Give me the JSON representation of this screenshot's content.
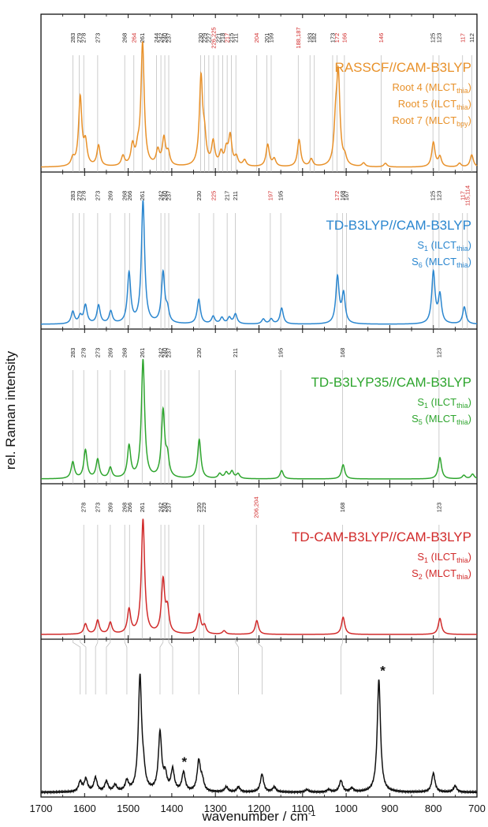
{
  "chart_data": {
    "type": "line",
    "xlabel": "wavenumber / cm",
    "xlabel_sup": "-1",
    "ylabel": "rel. Raman intensity",
    "x_reversed": true,
    "xlim": [
      700,
      1700
    ],
    "xticks": [
      "1700",
      "1600",
      "1500",
      "1400",
      "1300",
      "1200",
      "1100",
      "1000",
      "900",
      "800",
      "700"
    ],
    "xtick_values": [
      1700,
      1600,
      1500,
      1400,
      1300,
      1200,
      1100,
      1000,
      900,
      800,
      700
    ],
    "panels": [
      {
        "id": "rasscf",
        "color": "#e8912a",
        "title": "RASSCF//CAM-B3LYP",
        "legend": [
          {
            "main": "Root 4 (MLCT",
            "sub": "thia",
            "end": ")"
          },
          {
            "main": "Root 5 (ILCT",
            "sub": "thia",
            "end": ")"
          },
          {
            "main": "Root 7 (MLCT",
            "sub": "bpy",
            "end": ")"
          }
        ],
        "peaks": [
          {
            "x": 1627,
            "h": 0.06
          },
          {
            "x": 1610,
            "h": 0.56
          },
          {
            "x": 1598,
            "h": 0.18
          },
          {
            "x": 1568,
            "h": 0.17
          },
          {
            "x": 1512,
            "h": 0.08
          },
          {
            "x": 1490,
            "h": 0.16
          },
          {
            "x": 1478,
            "h": 0.1
          },
          {
            "x": 1467,
            "h": 1.0
          },
          {
            "x": 1432,
            "h": 0.12
          },
          {
            "x": 1418,
            "h": 0.22
          },
          {
            "x": 1408,
            "h": 0.1
          },
          {
            "x": 1333,
            "h": 0.71
          },
          {
            "x": 1325,
            "h": 0.2
          },
          {
            "x": 1305,
            "h": 0.19
          },
          {
            "x": 1287,
            "h": 0.1
          },
          {
            "x": 1275,
            "h": 0.12
          },
          {
            "x": 1266,
            "h": 0.24
          },
          {
            "x": 1252,
            "h": 0.07
          },
          {
            "x": 1233,
            "h": 0.05
          },
          {
            "x": 1180,
            "h": 0.18
          },
          {
            "x": 1165,
            "h": 0.06
          },
          {
            "x": 1108,
            "h": 0.22
          },
          {
            "x": 1080,
            "h": 0.06
          },
          {
            "x": 1024,
            "h": 0.31
          },
          {
            "x": 1018,
            "h": 0.7
          },
          {
            "x": 1003,
            "h": 0.06
          },
          {
            "x": 960,
            "h": 0.03
          },
          {
            "x": 910,
            "h": 0.03
          },
          {
            "x": 800,
            "h": 0.2
          },
          {
            "x": 785,
            "h": 0.08
          },
          {
            "x": 740,
            "h": 0.03
          },
          {
            "x": 712,
            "h": 0.1
          }
        ],
        "labels": [
          {
            "x": 1627,
            "t": "283",
            "c": "#222"
          },
          {
            "x": 1612,
            "t": "279",
            "c": "#222"
          },
          {
            "x": 1602,
            "t": "278",
            "c": "#222"
          },
          {
            "x": 1570,
            "t": "273",
            "c": "#222"
          },
          {
            "x": 1508,
            "t": "268",
            "c": "#222"
          },
          {
            "x": 1487,
            "t": "264",
            "c": "#d12a2a"
          },
          {
            "x": 1468,
            "t": "261",
            "c": "#222"
          },
          {
            "x": 1435,
            "t": "244",
            "c": "#222"
          },
          {
            "x": 1425,
            "t": "242",
            "c": "#222"
          },
          {
            "x": 1416,
            "t": "240",
            "c": "#222"
          },
          {
            "x": 1407,
            "t": "237",
            "c": "#222"
          },
          {
            "x": 1334,
            "t": "230",
            "c": "#222"
          },
          {
            "x": 1325,
            "t": "229",
            "c": "#222"
          },
          {
            "x": 1315,
            "t": "227",
            "c": "#222"
          },
          {
            "x": 1304,
            "t": "226,225",
            "c": "#d12a2a"
          },
          {
            "x": 1293,
            "t": "221",
            "c": "#222"
          },
          {
            "x": 1283,
            "t": "218",
            "c": "#222"
          },
          {
            "x": 1273,
            "t": "217",
            "c": "#d12a2a"
          },
          {
            "x": 1263,
            "t": "215",
            "c": "#222"
          },
          {
            "x": 1253,
            "t": "211",
            "c": "#222"
          },
          {
            "x": 1205,
            "t": "204",
            "c": "#d12a2a"
          },
          {
            "x": 1182,
            "t": "201",
            "c": "#222"
          },
          {
            "x": 1172,
            "t": "199",
            "c": "#222"
          },
          {
            "x": 1110,
            "t": "188,187",
            "c": "#d12a2a"
          },
          {
            "x": 1083,
            "t": "183",
            "c": "#222"
          },
          {
            "x": 1073,
            "t": "182",
            "c": "#222"
          },
          {
            "x": 1031,
            "t": "173",
            "c": "#222"
          },
          {
            "x": 1021,
            "t": "172",
            "c": "#d12a2a"
          },
          {
            "x": 1004,
            "t": "166",
            "c": "#d12a2a"
          },
          {
            "x": 920,
            "t": "146",
            "c": "#d12a2a"
          },
          {
            "x": 801,
            "t": "125",
            "c": "#222"
          },
          {
            "x": 787,
            "t": "123",
            "c": "#222"
          },
          {
            "x": 733,
            "t": "117",
            "c": "#d12a2a"
          },
          {
            "x": 712,
            "t": "112",
            "c": "#222"
          }
        ]
      },
      {
        "id": "tdb3lyp",
        "color": "#2a86cf",
        "title": "TD-B3LYP//CAM-B3LYP",
        "legend": [
          {
            "main": "S",
            "sub": "1",
            "end": " (ILCT",
            "sub2": "thia",
            "end2": ")"
          },
          {
            "main": "S",
            "sub": "6",
            "end": " (MLCT",
            "sub2": "thia",
            "end2": ")"
          }
        ],
        "peaks": [
          {
            "x": 1627,
            "h": 0.1
          },
          {
            "x": 1610,
            "h": 0.06
          },
          {
            "x": 1598,
            "h": 0.15
          },
          {
            "x": 1568,
            "h": 0.15
          },
          {
            "x": 1540,
            "h": 0.1
          },
          {
            "x": 1498,
            "h": 0.41
          },
          {
            "x": 1466,
            "h": 1.0
          },
          {
            "x": 1420,
            "h": 0.41
          },
          {
            "x": 1410,
            "h": 0.1
          },
          {
            "x": 1338,
            "h": 0.2
          },
          {
            "x": 1305,
            "h": 0.06
          },
          {
            "x": 1285,
            "h": 0.05
          },
          {
            "x": 1268,
            "h": 0.05
          },
          {
            "x": 1254,
            "h": 0.08
          },
          {
            "x": 1190,
            "h": 0.04
          },
          {
            "x": 1172,
            "h": 0.04
          },
          {
            "x": 1148,
            "h": 0.13
          },
          {
            "x": 1020,
            "h": 0.38
          },
          {
            "x": 1006,
            "h": 0.24
          },
          {
            "x": 800,
            "h": 0.42
          },
          {
            "x": 785,
            "h": 0.23
          },
          {
            "x": 729,
            "h": 0.14
          }
        ],
        "labels": [
          {
            "x": 1627,
            "t": "283",
            "c": "#222"
          },
          {
            "x": 1612,
            "t": "279",
            "c": "#222"
          },
          {
            "x": 1602,
            "t": "278",
            "c": "#222"
          },
          {
            "x": 1570,
            "t": "273",
            "c": "#222"
          },
          {
            "x": 1541,
            "t": "269",
            "c": "#222"
          },
          {
            "x": 1508,
            "t": "268",
            "c": "#222"
          },
          {
            "x": 1497,
            "t": "266",
            "c": "#222"
          },
          {
            "x": 1468,
            "t": "261",
            "c": "#222"
          },
          {
            "x": 1425,
            "t": "242",
            "c": "#222"
          },
          {
            "x": 1416,
            "t": "240",
            "c": "#222"
          },
          {
            "x": 1407,
            "t": "237",
            "c": "#222"
          },
          {
            "x": 1337,
            "t": "230",
            "c": "#222"
          },
          {
            "x": 1304,
            "t": "225",
            "c": "#d12a2a"
          },
          {
            "x": 1273,
            "t": "217",
            "c": "#222"
          },
          {
            "x": 1254,
            "t": "211",
            "c": "#222"
          },
          {
            "x": 1174,
            "t": "197",
            "c": "#d12a2a"
          },
          {
            "x": 1150,
            "t": "195",
            "c": "#222"
          },
          {
            "x": 1021,
            "t": "172",
            "c": "#d12a2a"
          },
          {
            "x": 1008,
            "t": "168",
            "c": "#222"
          },
          {
            "x": 999,
            "t": "167",
            "c": "#222"
          },
          {
            "x": 801,
            "t": "125",
            "c": "#222"
          },
          {
            "x": 787,
            "t": "123",
            "c": "#222"
          },
          {
            "x": 733,
            "t": "117",
            "c": "#d12a2a"
          },
          {
            "x": 722,
            "t": "115,114",
            "c": "#d12a2a"
          }
        ]
      },
      {
        "id": "tdb3lyp35",
        "color": "#2ea52e",
        "title": "TD-B3LYP35//CAM-B3LYP",
        "legend": [
          {
            "main": "S",
            "sub": "1",
            "end": " (ILCT",
            "sub2": "thia",
            "end2": ")"
          },
          {
            "main": "S",
            "sub": "5",
            "end": " (MLCT",
            "sub2": "thia",
            "end2": ")"
          }
        ],
        "peaks": [
          {
            "x": 1627,
            "h": 0.14
          },
          {
            "x": 1598,
            "h": 0.24
          },
          {
            "x": 1570,
            "h": 0.16
          },
          {
            "x": 1541,
            "h": 0.09
          },
          {
            "x": 1498,
            "h": 0.27
          },
          {
            "x": 1466,
            "h": 1.0
          },
          {
            "x": 1420,
            "h": 0.56
          },
          {
            "x": 1410,
            "h": 0.16
          },
          {
            "x": 1337,
            "h": 0.33
          },
          {
            "x": 1290,
            "h": 0.04
          },
          {
            "x": 1275,
            "h": 0.05
          },
          {
            "x": 1262,
            "h": 0.06
          },
          {
            "x": 1248,
            "h": 0.04
          },
          {
            "x": 1148,
            "h": 0.07
          },
          {
            "x": 1007,
            "h": 0.12
          },
          {
            "x": 785,
            "h": 0.18
          },
          {
            "x": 730,
            "h": 0.03
          },
          {
            "x": 710,
            "h": 0.04
          }
        ],
        "labels": [
          {
            "x": 1627,
            "t": "283",
            "c": "#222"
          },
          {
            "x": 1602,
            "t": "278",
            "c": "#222"
          },
          {
            "x": 1570,
            "t": "273",
            "c": "#222"
          },
          {
            "x": 1541,
            "t": "269",
            "c": "#222"
          },
          {
            "x": 1508,
            "t": "268",
            "c": "#222"
          },
          {
            "x": 1468,
            "t": "261",
            "c": "#222"
          },
          {
            "x": 1425,
            "t": "242",
            "c": "#222"
          },
          {
            "x": 1416,
            "t": "240",
            "c": "#222"
          },
          {
            "x": 1407,
            "t": "237",
            "c": "#222"
          },
          {
            "x": 1337,
            "t": "230",
            "c": "#222"
          },
          {
            "x": 1254,
            "t": "211",
            "c": "#222"
          },
          {
            "x": 1150,
            "t": "195",
            "c": "#222"
          },
          {
            "x": 1008,
            "t": "168",
            "c": "#222"
          },
          {
            "x": 787,
            "t": "123",
            "c": "#222"
          }
        ]
      },
      {
        "id": "tdcam",
        "color": "#d12a2a",
        "title": "TD-CAM-B3LYP//CAM-B3LYP",
        "legend": [
          {
            "main": "S",
            "sub": "1",
            "end": " (ILCT",
            "sub2": "thia",
            "end2": ")"
          },
          {
            "main": "S",
            "sub": "2",
            "end": " (MLCT",
            "sub2": "thia",
            "end2": ")"
          }
        ],
        "peaks": [
          {
            "x": 1598,
            "h": 0.09
          },
          {
            "x": 1570,
            "h": 0.12
          },
          {
            "x": 1541,
            "h": 0.1
          },
          {
            "x": 1498,
            "h": 0.21
          },
          {
            "x": 1466,
            "h": 1.0
          },
          {
            "x": 1420,
            "h": 0.46
          },
          {
            "x": 1410,
            "h": 0.2
          },
          {
            "x": 1337,
            "h": 0.17
          },
          {
            "x": 1325,
            "h": 0.07
          },
          {
            "x": 1280,
            "h": 0.03
          },
          {
            "x": 1205,
            "h": 0.12
          },
          {
            "x": 1007,
            "h": 0.15
          },
          {
            "x": 785,
            "h": 0.14
          }
        ],
        "labels": [
          {
            "x": 1602,
            "t": "278",
            "c": "#222"
          },
          {
            "x": 1570,
            "t": "273",
            "c": "#222"
          },
          {
            "x": 1541,
            "t": "269",
            "c": "#222"
          },
          {
            "x": 1508,
            "t": "268",
            "c": "#222"
          },
          {
            "x": 1497,
            "t": "266",
            "c": "#222"
          },
          {
            "x": 1468,
            "t": "261",
            "c": "#222"
          },
          {
            "x": 1425,
            "t": "242",
            "c": "#222"
          },
          {
            "x": 1416,
            "t": "240",
            "c": "#222"
          },
          {
            "x": 1407,
            "t": "237",
            "c": "#222"
          },
          {
            "x": 1337,
            "t": "230",
            "c": "#222"
          },
          {
            "x": 1327,
            "t": "229",
            "c": "#222"
          },
          {
            "x": 1206,
            "t": "206,204",
            "c": "#d12a2a"
          },
          {
            "x": 1008,
            "t": "168",
            "c": "#222"
          },
          {
            "x": 787,
            "t": "123",
            "c": "#222"
          }
        ]
      },
      {
        "id": "experiment",
        "color": "#111111",
        "title": "",
        "legend": [],
        "peaks": [
          {
            "x": 1610,
            "h": 0.08
          },
          {
            "x": 1597,
            "h": 0.1
          },
          {
            "x": 1575,
            "h": 0.11
          },
          {
            "x": 1550,
            "h": 0.08
          },
          {
            "x": 1530,
            "h": 0.05
          },
          {
            "x": 1503,
            "h": 0.08
          },
          {
            "x": 1473,
            "h": 0.9
          },
          {
            "x": 1465,
            "h": 0.12
          },
          {
            "x": 1427,
            "h": 0.46
          },
          {
            "x": 1415,
            "h": 0.12
          },
          {
            "x": 1398,
            "h": 0.17
          },
          {
            "x": 1373,
            "h": 0.15
          },
          {
            "x": 1338,
            "h": 0.24
          },
          {
            "x": 1330,
            "h": 0.08
          },
          {
            "x": 1275,
            "h": 0.04
          },
          {
            "x": 1247,
            "h": 0.04
          },
          {
            "x": 1193,
            "h": 0.14
          },
          {
            "x": 1165,
            "h": 0.04
          },
          {
            "x": 1090,
            "h": 0.02
          },
          {
            "x": 1040,
            "h": 0.02
          },
          {
            "x": 1012,
            "h": 0.09
          },
          {
            "x": 987,
            "h": 0.03
          },
          {
            "x": 925,
            "h": 0.89
          },
          {
            "x": 800,
            "h": 0.15
          },
          {
            "x": 750,
            "h": 0.05
          }
        ],
        "stars": [
          {
            "x": 1373,
            "t": "*"
          },
          {
            "x": 925,
            "t": "*"
          }
        ]
      }
    ]
  }
}
